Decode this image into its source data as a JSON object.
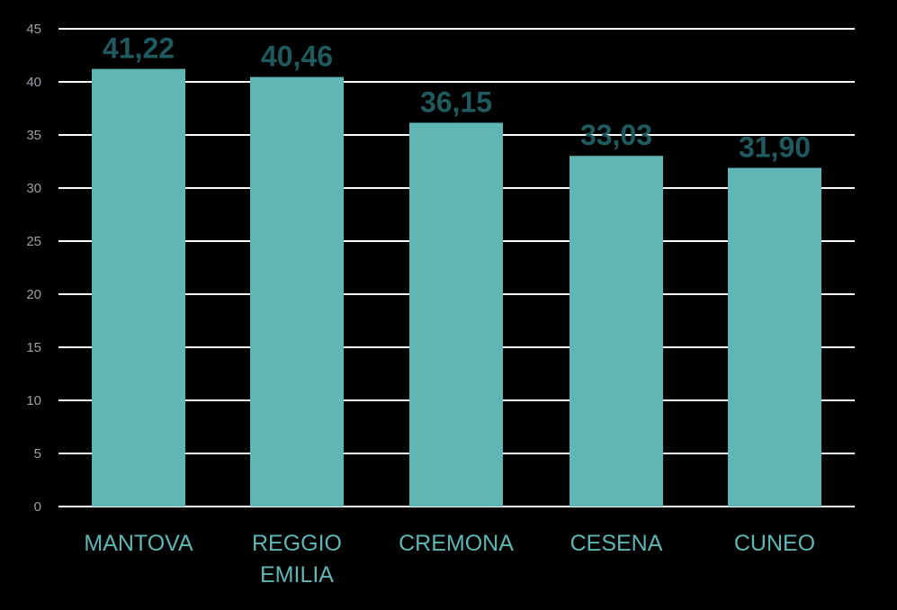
{
  "colors": {
    "background": "#000000",
    "bar": "#5fb6b5",
    "bar_label": "#1f5a5f",
    "grid": "#ffffff",
    "tick_text": "#9aa0a6",
    "category_text": "#5fb6b5"
  },
  "chart_data": {
    "type": "bar",
    "title": "",
    "xlabel": "",
    "ylabel": "",
    "categories": [
      "MANTOVA",
      "REGGIO EMILIA",
      "CREMONA",
      "CESENA",
      "CUNEO"
    ],
    "category_lines": [
      [
        "MANTOVA"
      ],
      [
        "REGGIO",
        "EMILIA"
      ],
      [
        "CREMONA"
      ],
      [
        "CESENA"
      ],
      [
        "CUNEO"
      ]
    ],
    "values": [
      41.22,
      40.46,
      36.15,
      33.03,
      31.9
    ],
    "value_labels": [
      "41,22",
      "40,46",
      "36,15",
      "33,03",
      "31,90"
    ],
    "ylim": [
      0,
      45
    ],
    "yticks": [
      0,
      5,
      10,
      15,
      20,
      25,
      30,
      35,
      40,
      45
    ],
    "ytick_labels": [
      "0",
      "5",
      "10",
      "15",
      "20",
      "25",
      "30",
      "35",
      "40",
      "45"
    ],
    "grid": true,
    "legend": "none"
  }
}
